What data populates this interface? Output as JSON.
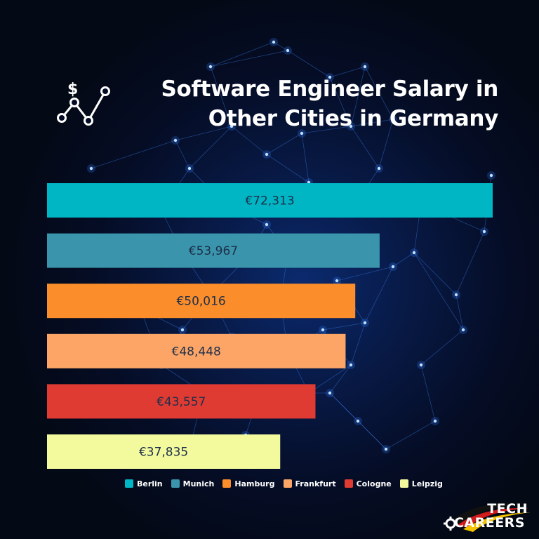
{
  "title_lines": [
    "Software Engineer Salary in",
    "Other Cities in Germany"
  ],
  "chart_data": {
    "type": "bar",
    "orientation": "horizontal",
    "currency": "€",
    "categories": [
      "Berlin",
      "Munich",
      "Hamburg",
      "Frankfurt",
      "Cologne",
      "Leipzig"
    ],
    "values": [
      72313,
      53967,
      50016,
      48448,
      43557,
      37835
    ],
    "value_labels": [
      "€72,313",
      "€53,967",
      "€50,016",
      "€48,448",
      "€43,557",
      "€37,835"
    ],
    "colors": [
      "#00b5c4",
      "#3a95ac",
      "#fb8d2a",
      "#fca566",
      "#df3b33",
      "#f3fa9e"
    ],
    "grid": false,
    "legend_placement": "bottom"
  },
  "logo": {
    "line1": "TECH",
    "line2": "CAREERS"
  },
  "icons": {
    "title_icon": "dollar-trend-icon",
    "logo_gear": "gear-icon"
  }
}
